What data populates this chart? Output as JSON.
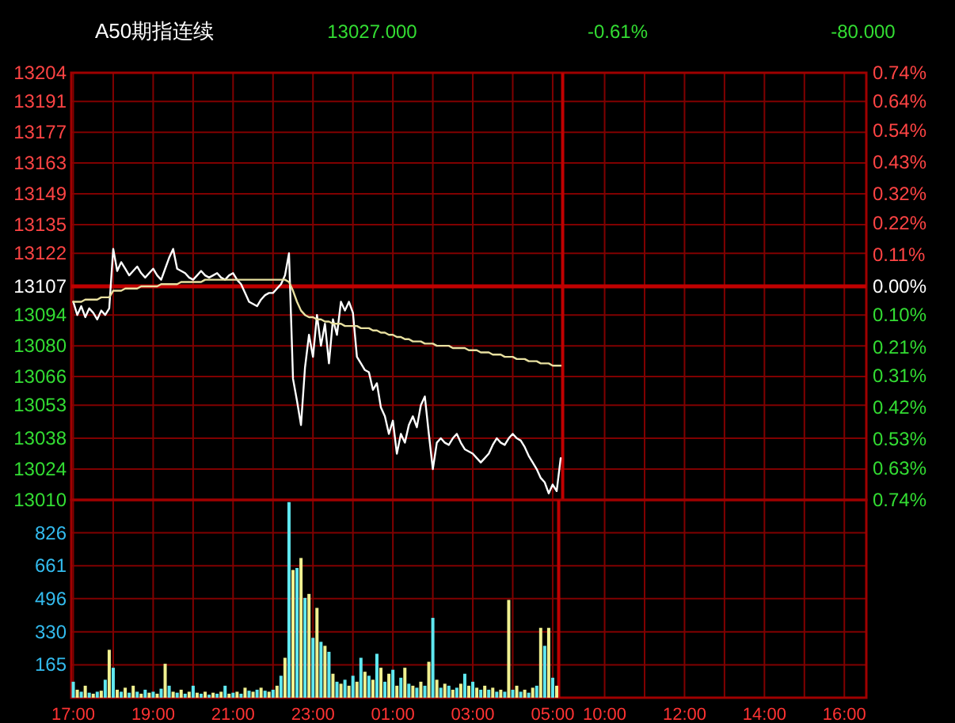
{
  "chart_data": [
    {
      "type": "line",
      "title": "A50期指连续",
      "annotations": [
        "13027.000",
        "-0.61%",
        "-80.000"
      ],
      "categories": [
        null,
        null,
        null,
        null,
        null,
        null,
        null,
        null,
        null,
        null,
        null,
        null,
        null,
        null,
        null,
        null,
        null,
        null,
        null,
        null,
        null,
        null,
        null,
        null,
        null,
        null,
        null,
        null,
        null,
        null,
        null,
        null,
        null,
        null,
        null,
        null,
        null,
        null,
        null,
        null,
        null,
        null,
        null,
        null,
        null,
        null,
        null,
        null,
        null,
        null,
        null,
        null,
        null,
        null,
        null,
        null,
        null,
        null,
        null,
        null,
        null,
        null,
        null,
        null,
        null,
        null,
        null,
        null,
        null,
        null,
        null,
        null,
        null,
        null,
        null,
        null,
        null,
        null,
        null,
        null,
        null,
        null,
        null,
        null,
        null,
        null,
        null,
        null,
        null,
        null,
        null,
        null,
        null,
        null,
        null,
        null,
        null,
        null,
        null,
        null,
        null,
        null,
        null,
        null,
        null,
        null,
        null,
        null,
        null,
        null,
        null,
        null,
        null,
        null,
        null,
        null,
        null,
        null,
        null,
        null,
        null,
        null,
        null,
        null,
        null,
        null,
        null,
        null,
        null,
        null,
        null,
        null,
        null,
        null,
        null,
        null,
        null,
        null,
        null,
        null,
        null,
        null,
        null,
        null,
        null,
        null,
        null,
        null,
        null,
        null,
        null,
        null,
        null,
        null,
        null,
        null,
        null,
        null,
        null,
        null,
        null,
        null,
        null,
        null,
        null,
        null,
        null,
        null,
        null,
        null,
        null,
        null,
        null,
        null,
        null,
        null,
        null,
        null,
        null,
        null,
        null,
        null,
        null,
        null,
        null,
        null,
        null,
        null,
        null,
        null,
        null,
        null,
        null,
        null,
        null,
        null,
        null,
        null,
        null
      ],
      "series": [
        {
          "color": "#ffffff",
          "values": [
            13100,
            13094,
            13098,
            13093,
            13097,
            13095,
            13092,
            13096,
            13094,
            13097,
            13124,
            13114,
            13118,
            13115,
            13112,
            13114,
            13116,
            13113,
            13111,
            13113,
            13115,
            13112,
            13110,
            13115,
            13120,
            13124,
            13115,
            13114,
            13113,
            13111,
            13110,
            13112,
            13114,
            13112,
            13111,
            13112,
            13113,
            13111,
            13110,
            13112,
            13113,
            13110,
            13108,
            13104,
            13100,
            13099,
            13098,
            13101,
            13103,
            13104,
            13104,
            13106,
            13108,
            13112,
            13122,
            13065,
            13055,
            13044,
            13070,
            13085,
            13075,
            13094,
            13080,
            13090,
            13072,
            13092,
            13085,
            13100,
            13096,
            13100,
            13095,
            13075,
            13072,
            13069,
            13068,
            13060,
            13063,
            13052,
            13048,
            13040,
            13046,
            13031,
            13040,
            13036,
            13044,
            13048,
            13043,
            13053,
            13057,
            13040,
            13024,
            13036,
            13038,
            13036,
            13035,
            13038,
            13040,
            13036,
            13033,
            13032,
            13031,
            13029,
            13027,
            13029,
            13031,
            13035,
            13038,
            13036,
            13035,
            13038,
            13040,
            13038,
            13037,
            13034,
            13030,
            13027,
            13024,
            13020,
            13018,
            13013,
            13017,
            13014,
            13029,
            null,
            null,
            null,
            null,
            null,
            null,
            null,
            null,
            null,
            null,
            null,
            null,
            null,
            null,
            null,
            null,
            null,
            null,
            null,
            null,
            null,
            null,
            null,
            null,
            null,
            null,
            null,
            null,
            null,
            null,
            null,
            null,
            null,
            null,
            null,
            null,
            null,
            null,
            null,
            null,
            null,
            null,
            null,
            null,
            null,
            null,
            null,
            null,
            null,
            null,
            null,
            null,
            null,
            null,
            null,
            null,
            null,
            null,
            null,
            null,
            null,
            null,
            null,
            null,
            null,
            null,
            null,
            null,
            null,
            null,
            null,
            null,
            null,
            null,
            null,
            null
          ]
        },
        {
          "color": "#e8e0a0",
          "values": [
            13100,
            13100,
            13100,
            13101,
            13101,
            13101,
            13101,
            13102,
            13102,
            13102,
            13105,
            13105,
            13105,
            13106,
            13106,
            13106,
            13106,
            13107,
            13107,
            13107,
            13107,
            13107,
            13108,
            13108,
            13108,
            13108,
            13108,
            13109,
            13109,
            13109,
            13109,
            13109,
            13109,
            13110,
            13110,
            13110,
            13110,
            13110,
            13110,
            13110,
            13110,
            13110,
            13110,
            13110,
            13110,
            13110,
            13110,
            13110,
            13110,
            13110,
            13110,
            13110,
            13110,
            13110,
            13109,
            13105,
            13100,
            13096,
            13094,
            13093,
            13093,
            13092,
            13092,
            13091,
            13091,
            13090,
            13090,
            13090,
            13089,
            13089,
            13089,
            13089,
            13088,
            13088,
            13088,
            13087,
            13087,
            13086,
            13086,
            13085,
            13085,
            13084,
            13084,
            13083,
            13083,
            13082,
            13082,
            13082,
            13081,
            13081,
            13081,
            13080,
            13080,
            13080,
            13080,
            13079,
            13079,
            13079,
            13079,
            13078,
            13078,
            13078,
            13077,
            13077,
            13077,
            13076,
            13076,
            13076,
            13075,
            13075,
            13075,
            13074,
            13074,
            13074,
            13073,
            13073,
            13073,
            13072,
            13072,
            13072,
            13071,
            13071,
            13071,
            null,
            null,
            null,
            null,
            null,
            null,
            null,
            null,
            null,
            null,
            null,
            null,
            null,
            null,
            null,
            null,
            null,
            null,
            null,
            null,
            null,
            null,
            null,
            null,
            null,
            null,
            null,
            null,
            null,
            null,
            null,
            null,
            null,
            null,
            null,
            null,
            null,
            null,
            null,
            null,
            null,
            null,
            null,
            null,
            null,
            null,
            null,
            null,
            null,
            null,
            null,
            null,
            null,
            null,
            null,
            null,
            null,
            null,
            null,
            null,
            null,
            null,
            null,
            null,
            null,
            null,
            null,
            null,
            null,
            null,
            null,
            null,
            null,
            null,
            null,
            null
          ]
        }
      ],
      "ylim": [
        13010,
        13204
      ],
      "yticks": [
        13010,
        13024,
        13038,
        13053,
        13066,
        13080,
        13094,
        13107,
        13122,
        13135,
        13149,
        13163,
        13177,
        13191,
        13204
      ],
      "y2lim": [
        -0.74,
        0.74
      ],
      "y2ticks": [
        {
          "value": -0.74,
          "label": "0.74%"
        },
        {
          "value": -0.63,
          "label": "0.63%"
        },
        {
          "value": -0.53,
          "label": "0.53%"
        },
        {
          "value": -0.42,
          "label": "0.42%"
        },
        {
          "value": -0.31,
          "label": "0.31%"
        },
        {
          "value": -0.21,
          "label": "0.21%"
        },
        {
          "value": -0.1,
          "label": "0.10%"
        },
        {
          "value": 0,
          "label": "0.00%"
        },
        {
          "value": 0.11,
          "label": "0.11%"
        },
        {
          "value": 0.22,
          "label": "0.22%"
        },
        {
          "value": 0.32,
          "label": "0.32%"
        },
        {
          "value": 0.43,
          "label": "0.43%"
        },
        {
          "value": 0.54,
          "label": "0.54%"
        },
        {
          "value": 0.64,
          "label": "0.64%"
        },
        {
          "value": 0.74,
          "label": "0.74%"
        }
      ],
      "ref_lines": [
        {
          "axis": "y",
          "value": 13107,
          "color": "#c00000"
        }
      ],
      "tick_labels": "y",
      "grid": true
    },
    {
      "type": "bar",
      "categories": [
        "17:00",
        null,
        null,
        null,
        null,
        null,
        null,
        null,
        null,
        null,
        null,
        null,
        null,
        null,
        null,
        null,
        null,
        null,
        null,
        null,
        "19:00",
        null,
        null,
        null,
        null,
        null,
        null,
        null,
        null,
        null,
        null,
        null,
        null,
        null,
        null,
        null,
        null,
        null,
        null,
        null,
        "21:00",
        null,
        null,
        null,
        null,
        null,
        null,
        null,
        null,
        null,
        null,
        null,
        null,
        null,
        null,
        null,
        null,
        null,
        null,
        null,
        "23:00",
        null,
        null,
        null,
        null,
        null,
        null,
        null,
        null,
        null,
        null,
        null,
        null,
        null,
        null,
        null,
        null,
        null,
        null,
        null,
        "01:00",
        null,
        null,
        null,
        null,
        null,
        null,
        null,
        null,
        null,
        null,
        null,
        null,
        null,
        null,
        null,
        null,
        null,
        null,
        null,
        "03:00",
        null,
        null,
        null,
        null,
        null,
        null,
        null,
        null,
        null,
        null,
        null,
        null,
        null,
        null,
        null,
        null,
        null,
        null,
        null,
        "05:00",
        null,
        null,
        null,
        null,
        null,
        null,
        null,
        null,
        null,
        null,
        null,
        null,
        "10:00",
        null,
        null,
        null,
        null,
        null,
        null,
        null,
        null,
        null,
        null,
        null,
        null,
        null,
        null,
        null,
        null,
        null,
        null,
        null,
        "12:00",
        null,
        null,
        null,
        null,
        null,
        null,
        null,
        null,
        null,
        null,
        null,
        null,
        null,
        null,
        null,
        null,
        null,
        null,
        null,
        "14:00",
        null,
        null,
        null,
        null,
        null,
        null,
        null,
        null,
        null,
        null,
        null,
        null,
        null,
        null,
        null,
        null,
        null,
        null,
        null,
        "16:00",
        null,
        null,
        null,
        null,
        null
      ],
      "series": [
        {
          "color": "#60e8f0",
          "values": [
            80,
            null,
            30,
            null,
            25,
            null,
            30,
            null,
            90,
            null,
            150,
            null,
            30,
            null,
            25,
            null,
            30,
            null,
            40,
            null,
            30,
            null,
            45,
            null,
            60,
            null,
            25,
            null,
            20,
            null,
            60,
            null,
            20,
            null,
            15,
            null,
            20,
            null,
            60,
            null,
            25,
            null,
            20,
            null,
            35,
            null,
            40,
            null,
            35,
            null,
            40,
            null,
            110,
            null,
            980,
            null,
            650,
            null,
            500,
            null,
            300,
            null,
            280,
            null,
            230,
            null,
            80,
            null,
            90,
            null,
            110,
            null,
            200,
            null,
            110,
            null,
            220,
            null,
            80,
            null,
            140,
            null,
            100,
            null,
            70,
            null,
            50,
            null,
            60,
            null,
            400,
            null,
            50,
            null,
            60,
            null,
            50,
            null,
            120,
            null,
            80,
            null,
            40,
            null,
            40,
            null,
            30,
            null,
            30,
            null,
            40,
            null,
            30,
            null,
            25,
            null,
            60,
            null,
            260,
            null,
            100,
            null,
            null,
            null,
            null,
            null,
            null,
            null,
            null,
            null,
            null,
            null,
            null,
            null,
            null,
            null,
            null,
            null,
            null,
            null,
            null,
            null,
            null,
            null,
            null,
            null,
            null,
            null,
            null,
            null,
            null,
            null,
            null,
            null,
            null,
            null,
            null,
            null,
            null,
            null,
            null,
            null,
            null,
            null,
            null,
            null,
            null,
            null,
            null,
            null,
            null,
            null,
            null,
            null,
            null,
            null,
            null,
            null,
            null,
            null,
            null,
            null,
            null,
            null,
            null,
            null,
            null,
            null,
            null,
            null,
            null,
            null,
            null,
            null,
            null,
            null,
            null,
            null,
            null
          ]
        },
        {
          "color": "#f0f090",
          "values": [
            null,
            40,
            null,
            60,
            null,
            20,
            null,
            35,
            null,
            240,
            null,
            40,
            null,
            50,
            null,
            60,
            null,
            20,
            null,
            25,
            null,
            20,
            null,
            170,
            null,
            30,
            null,
            40,
            null,
            30,
            null,
            25,
            null,
            30,
            null,
            25,
            null,
            30,
            null,
            20,
            null,
            30,
            null,
            50,
            null,
            30,
            null,
            50,
            null,
            30,
            null,
            60,
            null,
            200,
            null,
            640,
            null,
            700,
            null,
            520,
            null,
            450,
            null,
            260,
            null,
            120,
            null,
            70,
            null,
            60,
            null,
            80,
            null,
            130,
            null,
            90,
            null,
            150,
            null,
            120,
            null,
            60,
            null,
            150,
            null,
            60,
            null,
            80,
            null,
            180,
            null,
            90,
            null,
            70,
            null,
            40,
            null,
            70,
            null,
            60,
            null,
            50,
            null,
            60,
            null,
            50,
            null,
            40,
            null,
            490,
            null,
            60,
            null,
            40,
            null,
            50,
            null,
            350,
            null,
            350,
            null,
            60,
            null,
            null,
            null,
            null,
            null,
            null,
            null,
            null,
            null,
            null,
            null,
            null,
            null,
            null,
            null,
            null,
            null,
            null,
            null,
            null,
            null,
            null,
            null,
            null,
            null,
            null,
            null,
            null,
            null,
            null,
            null,
            null,
            null,
            null,
            null,
            null,
            null,
            null,
            null,
            null,
            null,
            null,
            null,
            null,
            null,
            null,
            null,
            null,
            null,
            null,
            null,
            null,
            null,
            null,
            null,
            null,
            null,
            null,
            null,
            null,
            null,
            null,
            null,
            null,
            null,
            null,
            null,
            null,
            null,
            null,
            null,
            null,
            null,
            null,
            null,
            null,
            null
          ]
        }
      ],
      "ylim": [
        0,
        991
      ],
      "yticks": [
        165,
        330,
        496,
        661,
        826
      ],
      "grid": true
    }
  ]
}
